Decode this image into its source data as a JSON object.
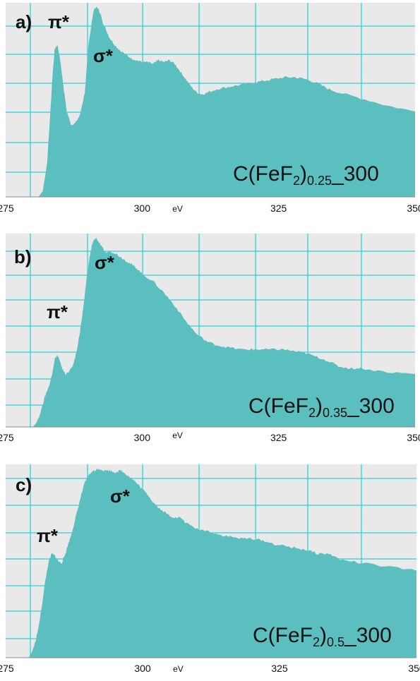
{
  "colors": {
    "fill": "#5bbfbf",
    "plot_bg": "#e9e9e9",
    "grid": "#30d0e0",
    "text": "#111111"
  },
  "chart_data": [
    {
      "type": "area",
      "panel_label": "a)",
      "sample_label": {
        "base": "C(FeF",
        "sub1": "2",
        "mid": ")",
        "sub2": "0.25",
        "tail": "_300"
      },
      "annotations": [
        "π*",
        "σ*"
      ],
      "xlabel": "eV",
      "ylabel": "",
      "xlim": [
        275,
        350
      ],
      "ylim": [
        0,
        1
      ],
      "xticks": [
        275,
        300,
        325,
        350
      ],
      "grid": true,
      "x": [
        275,
        281,
        281.8,
        282.6,
        283.2,
        283.6,
        284.0,
        284.5,
        285.0,
        285.6,
        286.2,
        287.0,
        287.8,
        288.6,
        289.5,
        290.2,
        290.8,
        291.2,
        291.6,
        292.0,
        292.4,
        292.8,
        293.4,
        294.0,
        295.0,
        296.0,
        297.0,
        298.0,
        299.0,
        300.0,
        301.0,
        302.0,
        303.0,
        304.0,
        305.0,
        306.0,
        307.0,
        308.0,
        309.0,
        310.0,
        311.0,
        312.0,
        314.0,
        316.0,
        318.0,
        320.0,
        322.0,
        324.0,
        326.0,
        328.0,
        330.0,
        332.0,
        334.0,
        336.0,
        340.0,
        345.0,
        350.0
      ],
      "y": [
        0,
        0.0,
        0.03,
        0.18,
        0.45,
        0.65,
        0.78,
        0.8,
        0.72,
        0.58,
        0.45,
        0.38,
        0.39,
        0.43,
        0.55,
        0.8,
        0.93,
        0.99,
        1.0,
        0.99,
        0.96,
        0.92,
        0.88,
        0.84,
        0.8,
        0.77,
        0.75,
        0.73,
        0.72,
        0.71,
        0.71,
        0.7,
        0.72,
        0.71,
        0.72,
        0.7,
        0.66,
        0.62,
        0.58,
        0.55,
        0.54,
        0.55,
        0.57,
        0.58,
        0.59,
        0.6,
        0.61,
        0.62,
        0.63,
        0.63,
        0.62,
        0.6,
        0.57,
        0.55,
        0.52,
        0.48,
        0.45
      ]
    },
    {
      "type": "area",
      "panel_label": "b)",
      "sample_label": {
        "base": "C(FeF",
        "sub1": "2",
        "mid": ")",
        "sub2": "0.35",
        "tail": "_300"
      },
      "annotations": [
        "π*",
        "σ*"
      ],
      "xlabel": "eV",
      "ylabel": "",
      "xlim": [
        275,
        350
      ],
      "ylim": [
        0,
        1
      ],
      "xticks": [
        275,
        300,
        325,
        350
      ],
      "grid": true,
      "x": [
        275,
        280.0,
        280.6,
        281.2,
        281.8,
        282.4,
        283.0,
        283.5,
        284.0,
        284.5,
        285.0,
        285.5,
        286.0,
        286.6,
        287.4,
        288.0,
        288.6,
        289.2,
        289.8,
        290.4,
        290.8,
        291.2,
        291.6,
        292.0,
        292.6,
        293.4,
        294.0,
        295.0,
        296.0,
        297.0,
        298.0,
        299.0,
        300.0,
        302.0,
        304.0,
        306.0,
        308.0,
        310.0,
        312.0,
        314.0,
        316.0,
        318.0,
        320.0,
        322.0,
        324.0,
        326.0,
        328.0,
        330.0,
        332.0,
        334.0,
        336.0,
        338.0,
        340.0,
        345.0,
        350.0
      ],
      "y": [
        0,
        0.0,
        0.02,
        0.06,
        0.12,
        0.18,
        0.22,
        0.28,
        0.36,
        0.38,
        0.34,
        0.3,
        0.28,
        0.29,
        0.33,
        0.4,
        0.5,
        0.62,
        0.78,
        0.9,
        0.96,
        0.99,
        1.0,
        0.98,
        0.95,
        0.92,
        0.93,
        0.92,
        0.9,
        0.88,
        0.86,
        0.84,
        0.81,
        0.77,
        0.71,
        0.64,
        0.56,
        0.49,
        0.45,
        0.43,
        0.42,
        0.41,
        0.41,
        0.41,
        0.41,
        0.41,
        0.4,
        0.39,
        0.37,
        0.35,
        0.32,
        0.31,
        0.31,
        0.29,
        0.28
      ]
    },
    {
      "type": "area",
      "panel_label": "c)",
      "sample_label": {
        "base": "C(FeF",
        "sub1": "2",
        "mid": ")",
        "sub2": "0.5",
        "tail": "_300"
      },
      "annotations": [
        "π*",
        "σ*"
      ],
      "xlabel": "eV",
      "ylabel": "",
      "xlim": [
        275,
        350
      ],
      "ylim": [
        0,
        1
      ],
      "xticks": [
        275,
        300,
        325,
        350
      ],
      "grid": true,
      "x": [
        275,
        279.2,
        279.8,
        280.4,
        281.0,
        281.6,
        282.2,
        282.8,
        283.4,
        284.0,
        284.6,
        285.2,
        285.8,
        286.4,
        287.0,
        287.6,
        288.2,
        288.8,
        289.4,
        290.0,
        290.6,
        291.2,
        292.0,
        293.0,
        294.0,
        295.0,
        296.0,
        297.0,
        298.0,
        299.0,
        300.0,
        301.0,
        302.0,
        303.0,
        304.0,
        305.0,
        306.0,
        307.0,
        308.0,
        310.0,
        312.0,
        314.0,
        316.0,
        318.0,
        320.0,
        322.0,
        324.0,
        326.0,
        328.0,
        330.0,
        332.0,
        334.0,
        336.0,
        340.0,
        345.0,
        350.0
      ],
      "y": [
        0,
        0.0,
        0.03,
        0.08,
        0.16,
        0.27,
        0.4,
        0.5,
        0.55,
        0.54,
        0.51,
        0.5,
        0.54,
        0.6,
        0.65,
        0.72,
        0.79,
        0.86,
        0.92,
        0.96,
        0.98,
        0.99,
        1.0,
        0.99,
        0.99,
        0.98,
        0.99,
        0.97,
        0.95,
        0.92,
        0.89,
        0.86,
        0.82,
        0.79,
        0.77,
        0.75,
        0.74,
        0.74,
        0.71,
        0.68,
        0.67,
        0.65,
        0.64,
        0.63,
        0.63,
        0.62,
        0.6,
        0.59,
        0.58,
        0.57,
        0.55,
        0.55,
        0.52,
        0.5,
        0.48,
        0.46
      ]
    }
  ]
}
